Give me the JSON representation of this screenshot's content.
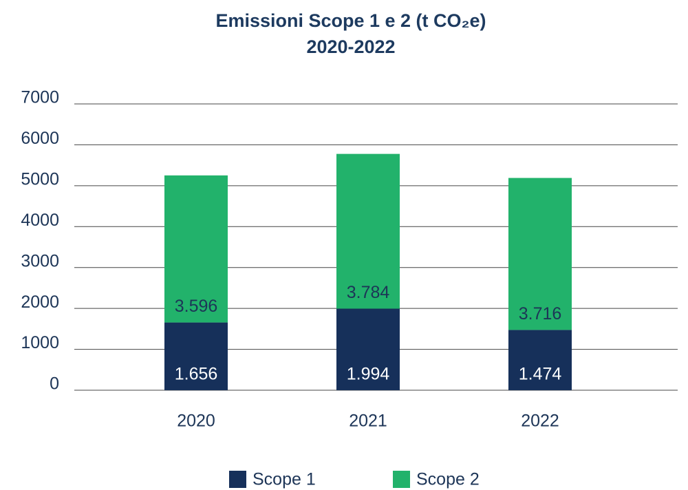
{
  "chart_data": {
    "type": "stacked_bar",
    "title": "Emissioni Scope 1 e 2 (t CO₂e)",
    "subtitle": "2020-2022",
    "categories": [
      "2020",
      "2021",
      "2022"
    ],
    "series": [
      {
        "name": "Scope 1",
        "color": "#16305a",
        "values": [
          1656,
          1994,
          1474
        ],
        "value_labels": [
          "1.656",
          "1.994",
          "1.474"
        ]
      },
      {
        "name": "Scope 2",
        "color": "#22b26b",
        "values": [
          3596,
          3784,
          3716
        ],
        "value_labels": [
          "3.596",
          "3.784",
          "3.716"
        ]
      }
    ],
    "ylim": [
      0,
      7000
    ],
    "yticks": [
      0,
      1000,
      2000,
      3000,
      4000,
      5000,
      6000,
      7000
    ],
    "grid": true,
    "legend": "bottom"
  }
}
